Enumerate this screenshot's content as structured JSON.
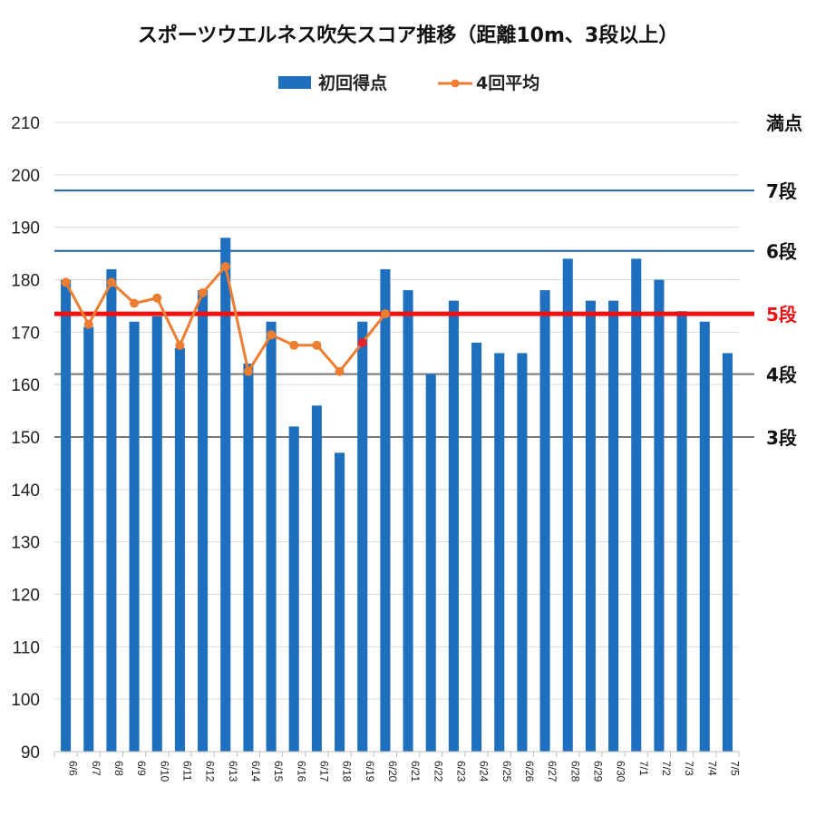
{
  "chart_data": {
    "type": "bar",
    "title": "スポーツウエルネス吹矢スコア推移（距離10m、3段以上）",
    "ylim": [
      90,
      210
    ],
    "yticks": [
      90,
      100,
      110,
      120,
      130,
      140,
      150,
      160,
      170,
      180,
      190,
      200,
      210
    ],
    "grid": true,
    "legend_position": "top-center",
    "categories": [
      "6/6",
      "6/7",
      "6/8",
      "6/9",
      "6/10",
      "6/11",
      "6/12",
      "6/13",
      "6/14",
      "6/15",
      "6/16",
      "6/17",
      "6/18",
      "6/19",
      "6/20",
      "6/21",
      "6/22",
      "6/23",
      "6/24",
      "6/25",
      "6/26",
      "6/27",
      "6/28",
      "6/29",
      "6/30",
      "7/1",
      "7/2",
      "7/3",
      "7/4",
      "7/5"
    ],
    "series": [
      {
        "name": "初回得点",
        "type": "bar",
        "color": "#1f6fbf",
        "values": [
          180,
          171,
          182,
          172,
          173,
          167,
          178,
          188,
          164,
          172,
          152,
          156,
          147,
          172,
          182,
          178,
          162,
          176,
          168,
          166,
          166,
          178,
          184,
          176,
          176,
          184,
          180,
          174,
          172,
          166
        ]
      },
      {
        "name": "4回平均",
        "type": "line",
        "color": "#ed7d31",
        "highlight_color": "#e8202a",
        "highlight_category": "6/19",
        "values": [
          179.5,
          171.5,
          179.5,
          175.5,
          176.5,
          167.5,
          177.5,
          182.5,
          162.5,
          169.5,
          167.5,
          167.5,
          162.5,
          168,
          173.5,
          null,
          null,
          null,
          null,
          null,
          null,
          null,
          null,
          null,
          null,
          null,
          null,
          null,
          null,
          null
        ]
      }
    ],
    "reference_lines": [
      {
        "label": "満点",
        "value": 210,
        "color": "#111111",
        "show_line": false
      },
      {
        "label": "7段",
        "value": 197,
        "color": "#1f5fa8",
        "label_color": "#111111",
        "show_line": true,
        "width": 2
      },
      {
        "label": "6段",
        "value": 185.5,
        "color": "#1f5fa8",
        "label_color": "#111111",
        "show_line": true,
        "width": 2
      },
      {
        "label": "5段",
        "value": 173.5,
        "color": "#ee1111",
        "label_color": "#ee1111",
        "show_line": true,
        "width": 5
      },
      {
        "label": "4段",
        "value": 162,
        "color": "#777777",
        "label_color": "#111111",
        "show_line": true,
        "width": 2
      },
      {
        "label": "3段",
        "value": 150,
        "color": "#777777",
        "label_color": "#111111",
        "show_line": true,
        "width": 2
      }
    ]
  }
}
